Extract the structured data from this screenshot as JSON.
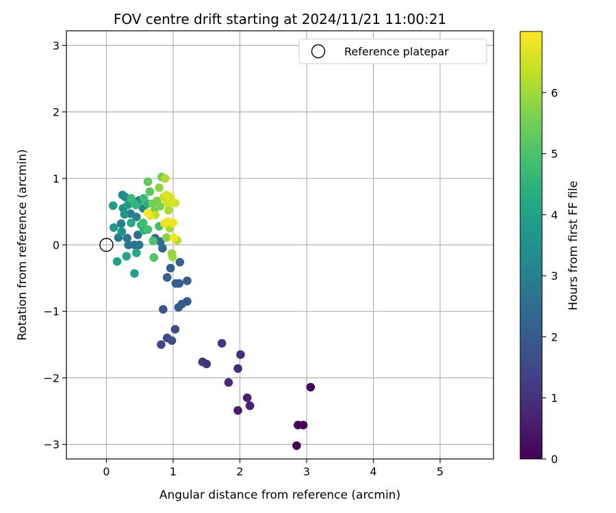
{
  "chart_data": {
    "type": "scatter",
    "title": "FOV centre drift starting at 2024/11/21 11:00:21",
    "xlabel": "Angular distance from reference (arcmin)",
    "ylabel": "Rotation from reference (arcmin)",
    "xlim": [
      -0.6,
      5.8
    ],
    "ylim": [
      -3.22,
      3.22
    ],
    "xticks": [
      "0",
      "1",
      "2",
      "3",
      "4",
      "5"
    ],
    "yticks": [
      "−3",
      "−2",
      "−1",
      "0",
      "1",
      "2",
      "3"
    ],
    "grid": true,
    "legend": {
      "position": "top-right",
      "entries": [
        "Reference platepar"
      ]
    },
    "reference_point": {
      "x": 0,
      "y": 0
    },
    "colorbar": {
      "label": "Hours from first FF file",
      "range": [
        0,
        7
      ],
      "ticks": [
        "0",
        "1",
        "2",
        "3",
        "4",
        "5",
        "6"
      ],
      "colormap": "viridis"
    },
    "points": [
      {
        "x": 2.85,
        "y": -3.02,
        "hours": 0.02
      },
      {
        "x": 2.87,
        "y": -2.71,
        "hours": 0.05
      },
      {
        "x": 2.95,
        "y": -2.71,
        "hours": 0.08
      },
      {
        "x": 3.06,
        "y": -2.14,
        "hours": 0.12
      },
      {
        "x": 1.97,
        "y": -2.49,
        "hours": 0.55
      },
      {
        "x": 2.15,
        "y": -2.42,
        "hours": 0.6
      },
      {
        "x": 2.11,
        "y": -2.3,
        "hours": 0.65
      },
      {
        "x": 1.83,
        "y": -2.07,
        "hours": 0.8
      },
      {
        "x": 1.97,
        "y": -1.86,
        "hours": 0.85
      },
      {
        "x": 2.01,
        "y": -1.65,
        "hours": 0.9
      },
      {
        "x": 1.5,
        "y": -1.79,
        "hours": 1.0
      },
      {
        "x": 1.44,
        "y": -1.76,
        "hours": 1.05
      },
      {
        "x": 1.73,
        "y": -1.48,
        "hours": 1.1
      },
      {
        "x": 0.82,
        "y": -1.5,
        "hours": 1.5
      },
      {
        "x": 0.91,
        "y": -1.4,
        "hours": 1.55
      },
      {
        "x": 0.98,
        "y": -1.44,
        "hours": 1.6
      },
      {
        "x": 1.03,
        "y": -1.27,
        "hours": 1.65
      },
      {
        "x": 0.85,
        "y": -0.97,
        "hours": 1.75
      },
      {
        "x": 1.08,
        "y": -0.94,
        "hours": 1.9
      },
      {
        "x": 1.13,
        "y": -0.89,
        "hours": 1.95
      },
      {
        "x": 1.21,
        "y": -0.85,
        "hours": 2.0
      },
      {
        "x": 1.04,
        "y": -0.58,
        "hours": 2.0
      },
      {
        "x": 1.09,
        "y": -0.58,
        "hours": 2.05
      },
      {
        "x": 1.21,
        "y": -0.54,
        "hours": 2.1
      },
      {
        "x": 0.91,
        "y": -0.49,
        "hours": 2.15
      },
      {
        "x": 0.96,
        "y": -0.35,
        "hours": 2.2
      },
      {
        "x": 1.1,
        "y": -0.26,
        "hours": 2.25
      },
      {
        "x": 0.84,
        "y": -0.05,
        "hours": 2.3
      },
      {
        "x": 0.73,
        "y": 0.1,
        "hours": 2.4
      },
      {
        "x": 0.81,
        "y": 0.05,
        "hours": 2.45
      },
      {
        "x": 0.47,
        "y": 0.15,
        "hours": 2.55
      },
      {
        "x": 0.42,
        "y": 0.0,
        "hours": 2.6
      },
      {
        "x": 0.49,
        "y": 0.0,
        "hours": 2.65
      },
      {
        "x": 0.33,
        "y": 0.0,
        "hours": 2.7
      },
      {
        "x": 0.31,
        "y": 0.1,
        "hours": 2.75
      },
      {
        "x": 0.18,
        "y": 0.11,
        "hours": 2.85
      },
      {
        "x": 0.22,
        "y": 0.32,
        "hours": 2.95
      },
      {
        "x": 0.36,
        "y": 0.47,
        "hours": 3.05
      },
      {
        "x": 0.45,
        "y": 0.42,
        "hours": 3.1
      },
      {
        "x": 0.55,
        "y": 0.55,
        "hours": 3.15
      },
      {
        "x": 0.49,
        "y": 0.67,
        "hours": 3.2
      },
      {
        "x": 0.28,
        "y": 0.72,
        "hours": 3.3
      },
      {
        "x": 0.24,
        "y": 0.75,
        "hours": 3.4
      },
      {
        "x": 0.25,
        "y": 0.55,
        "hours": 3.45
      },
      {
        "x": 0.23,
        "y": 0.2,
        "hours": 3.55
      },
      {
        "x": 0.11,
        "y": 0.26,
        "hours": 3.7
      },
      {
        "x": 0.27,
        "y": 0.46,
        "hours": 3.75
      },
      {
        "x": 0.32,
        "y": 0.6,
        "hours": 3.85
      },
      {
        "x": 0.1,
        "y": 0.59,
        "hours": 3.9
      },
      {
        "x": 0.42,
        "y": -0.43,
        "hours": 3.95
      },
      {
        "x": 0.16,
        "y": -0.25,
        "hours": 4.0
      },
      {
        "x": 0.3,
        "y": -0.17,
        "hours": 4.05
      },
      {
        "x": 0.45,
        "y": -0.12,
        "hours": 4.15
      },
      {
        "x": 0.37,
        "y": 0.33,
        "hours": 4.25
      },
      {
        "x": 0.42,
        "y": 0.62,
        "hours": 4.3
      },
      {
        "x": 0.56,
        "y": 0.22,
        "hours": 4.4
      },
      {
        "x": 0.61,
        "y": 0.62,
        "hours": 4.45
      },
      {
        "x": 0.52,
        "y": 0.3,
        "hours": 4.5
      },
      {
        "x": 0.44,
        "y": 0.6,
        "hours": 4.6
      },
      {
        "x": 0.37,
        "y": 0.7,
        "hours": 4.7
      },
      {
        "x": 0.56,
        "y": 0.7,
        "hours": 4.75
      },
      {
        "x": 0.79,
        "y": 0.28,
        "hours": 4.8
      },
      {
        "x": 0.55,
        "y": 0.33,
        "hours": 4.85
      },
      {
        "x": 0.62,
        "y": 0.23,
        "hours": 4.9
      },
      {
        "x": 0.7,
        "y": 0.06,
        "hours": 5.0
      },
      {
        "x": 0.71,
        "y": -0.19,
        "hours": 5.1
      },
      {
        "x": 0.65,
        "y": 0.8,
        "hours": 5.2
      },
      {
        "x": 0.62,
        "y": 0.95,
        "hours": 5.3
      },
      {
        "x": 0.83,
        "y": 1.02,
        "hours": 5.4
      },
      {
        "x": 0.71,
        "y": 0.5,
        "hours": 5.45
      },
      {
        "x": 0.69,
        "y": 0.62,
        "hours": 5.5
      },
      {
        "x": 0.76,
        "y": 0.66,
        "hours": 5.55
      },
      {
        "x": 0.8,
        "y": 0.58,
        "hours": 5.6
      },
      {
        "x": 0.9,
        "y": 0.11,
        "hours": 5.7
      },
      {
        "x": 0.79,
        "y": 0.86,
        "hours": 5.8
      },
      {
        "x": 0.98,
        "y": -0.13,
        "hours": 5.9
      },
      {
        "x": 0.99,
        "y": -0.18,
        "hours": 5.95
      },
      {
        "x": 0.95,
        "y": 0.25,
        "hours": 6.0
      },
      {
        "x": 0.93,
        "y": 0.52,
        "hours": 6.1
      },
      {
        "x": 0.88,
        "y": 1.0,
        "hours": 6.15
      },
      {
        "x": 0.97,
        "y": 0.32,
        "hours": 6.2
      },
      {
        "x": 1.06,
        "y": 0.07,
        "hours": 6.25
      },
      {
        "x": 0.73,
        "y": 0.45,
        "hours": 6.3
      },
      {
        "x": 0.86,
        "y": 0.72,
        "hours": 6.35
      },
      {
        "x": 0.91,
        "y": 0.63,
        "hours": 6.45
      },
      {
        "x": 0.99,
        "y": 0.64,
        "hours": 6.5
      },
      {
        "x": 1.03,
        "y": 0.63,
        "hours": 6.55
      },
      {
        "x": 0.9,
        "y": 0.75,
        "hours": 6.6
      },
      {
        "x": 0.96,
        "y": 0.72,
        "hours": 6.65
      },
      {
        "x": 0.66,
        "y": 0.44,
        "hours": 6.7
      },
      {
        "x": 0.87,
        "y": 0.32,
        "hours": 6.75
      },
      {
        "x": 0.92,
        "y": 0.35,
        "hours": 6.8
      },
      {
        "x": 1.0,
        "y": 0.33,
        "hours": 6.85
      },
      {
        "x": 1.01,
        "y": 0.11,
        "hours": 6.9
      },
      {
        "x": 0.62,
        "y": 0.48,
        "hours": 6.95
      }
    ]
  }
}
